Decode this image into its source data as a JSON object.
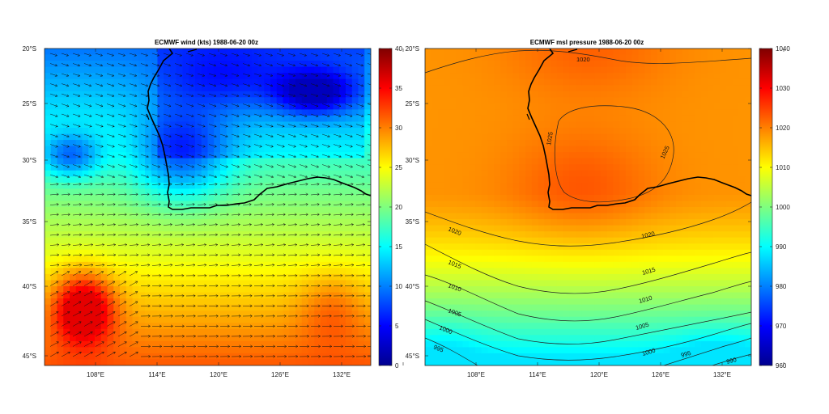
{
  "colors": {
    "background": "#ffffff",
    "coastline": "#000000",
    "vectors": "#000000",
    "contours": "#000000"
  },
  "panels": [
    {
      "title": "ECMWF wind (kts)  1988-06-20 00z",
      "lat_labels": [
        "20°S",
        "25°S",
        "30°S",
        "35°S",
        "40°S",
        "45°S"
      ],
      "lon_labels": [
        "108°E",
        "114°E",
        "120°E",
        "126°E",
        "132°E"
      ],
      "colorbar": {
        "min": 0,
        "max": 40,
        "tick_labels": [
          "0",
          "5",
          "10",
          "15",
          "20",
          "25",
          "30",
          "35",
          "40"
        ],
        "colormap": "jet"
      }
    },
    {
      "title": "ECMWF msl pressure  1988-06-20 00z",
      "lat_labels": [
        "20°S",
        "25°S",
        "30°S",
        "35°S",
        "40°S",
        "45°S"
      ],
      "lon_labels": [
        "108°E",
        "114°E",
        "120°E",
        "126°E",
        "132°E"
      ],
      "colorbar": {
        "min": 960,
        "max": 1040,
        "tick_labels": [
          "960",
          "970",
          "980",
          "990",
          "1000",
          "1010",
          "1020",
          "1030",
          "1040"
        ],
        "colormap": "jet"
      },
      "contour_labels": [
        "1020",
        "1025",
        "1025",
        "1020",
        "1020",
        "1015",
        "1015",
        "1010",
        "1010",
        "1005",
        "1005",
        "1000",
        "1000",
        "995",
        "995",
        "990"
      ]
    }
  ]
}
